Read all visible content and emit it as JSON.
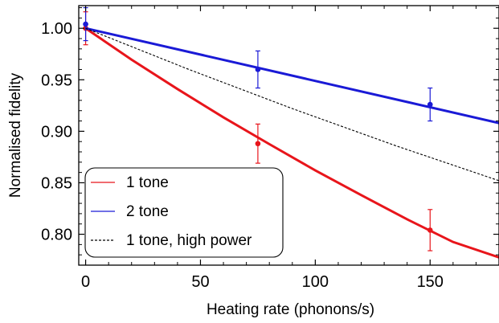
{
  "chart_data": {
    "type": "line",
    "title": "",
    "xlabel": "Heating rate (phonons/s)",
    "ylabel": "Normalised fidelity",
    "xlim": [
      -3,
      180
    ],
    "ylim": [
      0.77,
      1.022
    ],
    "x_ticks": [
      0,
      50,
      100,
      150
    ],
    "x_tick_labels": [
      "0",
      "50",
      "100",
      "150"
    ],
    "y_ticks": [
      0.8,
      0.85,
      0.9,
      0.95,
      1.0
    ],
    "y_tick_labels": [
      "0.80",
      "0.85",
      "0.90",
      "0.95",
      "1.00"
    ],
    "grid": false,
    "legend_position": "bottom-left",
    "series": [
      {
        "name": "1 tone",
        "color": "#e8151b",
        "style": "solid",
        "kind": "fit+data",
        "fit": {
          "x": [
            0,
            20,
            40,
            60,
            80,
            100,
            120,
            140,
            160,
            180
          ],
          "y": [
            1.0,
            0.9695,
            0.941,
            0.9135,
            0.8875,
            0.862,
            0.838,
            0.8145,
            0.7925,
            0.7775
          ]
        },
        "points": [
          {
            "x": 0,
            "y": 1.0,
            "err": 0.016
          },
          {
            "x": 75,
            "y": 0.888,
            "err": 0.019
          },
          {
            "x": 150,
            "y": 0.804,
            "err": 0.02
          }
        ]
      },
      {
        "name": "2 tone",
        "color": "#1a1ad6",
        "style": "solid",
        "kind": "fit+data",
        "fit": {
          "x": [
            0,
            180
          ],
          "y": [
            1.0,
            0.908
          ]
        },
        "points": [
          {
            "x": 0,
            "y": 1.004,
            "err": 0.016
          },
          {
            "x": 75,
            "y": 0.96,
            "err": 0.018
          },
          {
            "x": 150,
            "y": 0.926,
            "err": 0.016
          }
        ]
      },
      {
        "name": "1 tone, high power",
        "color": "#000000",
        "style": "dashed",
        "kind": "line",
        "fit": {
          "x": [
            0,
            45,
            90,
            135,
            180
          ],
          "y": [
            1.0,
            0.96,
            0.922,
            0.886,
            0.852
          ]
        }
      }
    ]
  }
}
